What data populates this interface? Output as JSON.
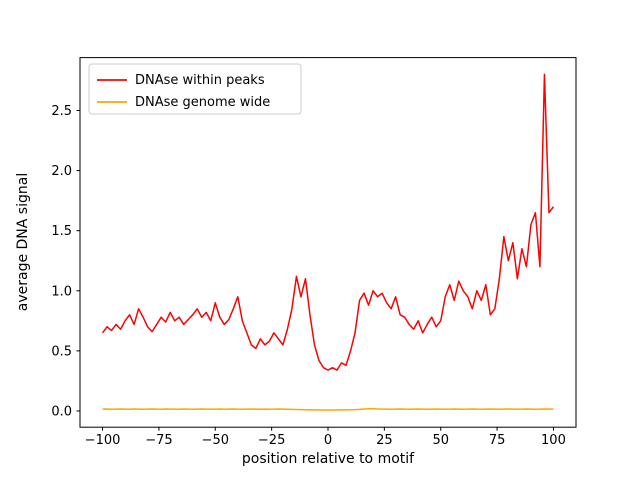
{
  "chart_data": {
    "type": "line",
    "title": "",
    "xlabel": "position relative to motif",
    "ylabel": "average DNA signal",
    "xlim": [
      -110,
      110
    ],
    "ylim": [
      -0.135,
      2.94
    ],
    "xticks": [
      -100,
      -75,
      -50,
      -25,
      0,
      25,
      50,
      75,
      100
    ],
    "xtick_labels": [
      "−100",
      "−75",
      "−50",
      "−25",
      "0",
      "25",
      "50",
      "75",
      "100"
    ],
    "yticks": [
      0.0,
      0.5,
      1.0,
      1.5,
      2.0,
      2.5
    ],
    "ytick_labels": [
      "0.0",
      "0.5",
      "1.0",
      "1.5",
      "2.0",
      "2.5"
    ],
    "grid": false,
    "legend_position": "upper left",
    "x_start": -100,
    "x_step": 2,
    "series": [
      {
        "name": "DNAse within peaks",
        "color": "#ff0000",
        "values": [
          0.65,
          0.7,
          0.67,
          0.72,
          0.68,
          0.75,
          0.8,
          0.72,
          0.85,
          0.78,
          0.7,
          0.66,
          0.72,
          0.78,
          0.74,
          0.82,
          0.75,
          0.78,
          0.72,
          0.76,
          0.8,
          0.85,
          0.78,
          0.82,
          0.75,
          0.9,
          0.78,
          0.72,
          0.76,
          0.85,
          0.95,
          0.75,
          0.65,
          0.55,
          0.52,
          0.6,
          0.55,
          0.58,
          0.65,
          0.6,
          0.55,
          0.68,
          0.85,
          1.12,
          0.95,
          1.1,
          0.8,
          0.55,
          0.42,
          0.36,
          0.34,
          0.36,
          0.34,
          0.4,
          0.38,
          0.5,
          0.65,
          0.92,
          0.98,
          0.88,
          1.0,
          0.95,
          0.98,
          0.9,
          0.85,
          0.95,
          0.8,
          0.78,
          0.72,
          0.68,
          0.75,
          0.65,
          0.72,
          0.78,
          0.7,
          0.75,
          0.95,
          1.05,
          0.92,
          1.08,
          1.0,
          0.95,
          0.85,
          1.0,
          0.92,
          1.05,
          0.8,
          0.85,
          1.1,
          1.45,
          1.25,
          1.4,
          1.1,
          1.35,
          1.2,
          1.55,
          1.65,
          1.2,
          2.8,
          1.65,
          1.7
        ]
      },
      {
        "name": "DNAse genome wide",
        "color": "#ffa500",
        "values": [
          0.015,
          0.016,
          0.014,
          0.015,
          0.016,
          0.015,
          0.014,
          0.016,
          0.015,
          0.014,
          0.015,
          0.016,
          0.015,
          0.014,
          0.016,
          0.015,
          0.015,
          0.014,
          0.016,
          0.015,
          0.014,
          0.015,
          0.016,
          0.015,
          0.014,
          0.015,
          0.016,
          0.014,
          0.015,
          0.016,
          0.015,
          0.014,
          0.015,
          0.016,
          0.015,
          0.014,
          0.015,
          0.014,
          0.015,
          0.016,
          0.015,
          0.014,
          0.013,
          0.012,
          0.011,
          0.01,
          0.009,
          0.009,
          0.008,
          0.008,
          0.008,
          0.008,
          0.008,
          0.009,
          0.009,
          0.01,
          0.011,
          0.013,
          0.016,
          0.018,
          0.018,
          0.016,
          0.015,
          0.015,
          0.014,
          0.015,
          0.016,
          0.015,
          0.014,
          0.015,
          0.016,
          0.015,
          0.014,
          0.015,
          0.016,
          0.015,
          0.014,
          0.015,
          0.016,
          0.015,
          0.014,
          0.015,
          0.016,
          0.015,
          0.014,
          0.015,
          0.016,
          0.015,
          0.014,
          0.015,
          0.016,
          0.015,
          0.014,
          0.015,
          0.016,
          0.015,
          0.014,
          0.015,
          0.016,
          0.015,
          0.016
        ]
      }
    ]
  }
}
